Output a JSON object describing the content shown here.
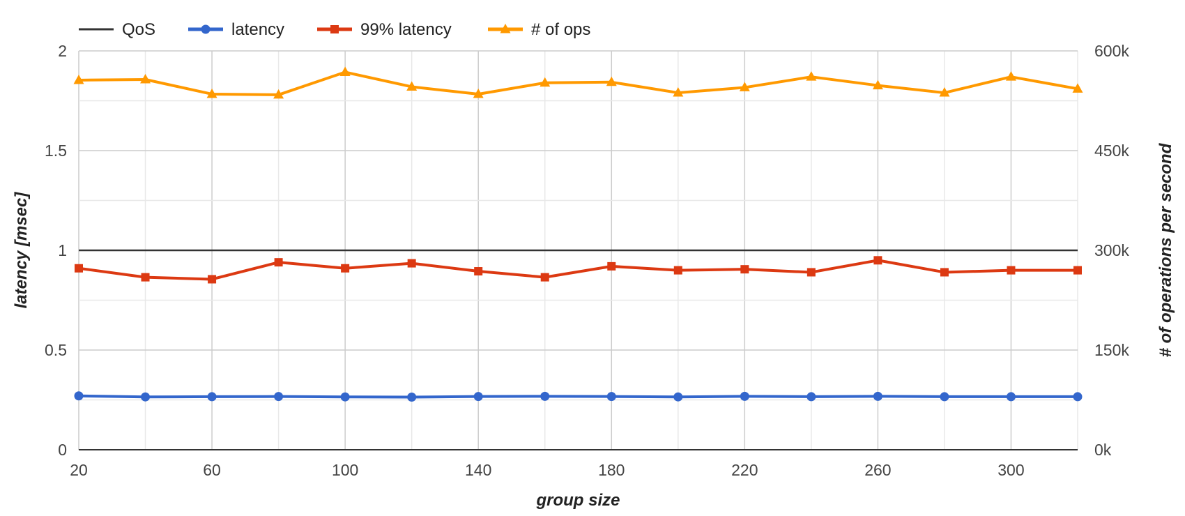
{
  "chart_data": {
    "type": "line",
    "title": "",
    "xlabel": "group size",
    "ylabel": "latency [msec]",
    "y2label": "# of operations per second",
    "x": [
      20,
      40,
      60,
      80,
      100,
      120,
      140,
      160,
      180,
      200,
      220,
      240,
      260,
      280,
      300,
      320
    ],
    "x_ticks": [
      20,
      60,
      100,
      140,
      180,
      220,
      260,
      300
    ],
    "xlim": [
      20,
      320
    ],
    "ylim": [
      0,
      2
    ],
    "y_ticks": [
      "0",
      "0.5",
      "1",
      "1.5",
      "2"
    ],
    "y2lim": [
      0,
      600000
    ],
    "y2_ticks": [
      "0k",
      "150k",
      "300k",
      "450k",
      "600k"
    ],
    "grid": true,
    "legend_position": "top-left",
    "series": [
      {
        "name": "QoS",
        "axis": "left",
        "color": "#333333",
        "marker": "none",
        "values": [
          1,
          1,
          1,
          1,
          1,
          1,
          1,
          1,
          1,
          1,
          1,
          1,
          1,
          1,
          1,
          1
        ]
      },
      {
        "name": "latency",
        "axis": "left",
        "color": "#3366cc",
        "marker": "circle",
        "values": [
          0.27,
          0.265,
          0.266,
          0.267,
          0.265,
          0.264,
          0.267,
          0.268,
          0.267,
          0.265,
          0.268,
          0.266,
          0.268,
          0.266,
          0.266,
          0.266
        ]
      },
      {
        "name": "99% latency",
        "axis": "left",
        "color": "#dc3912",
        "marker": "square",
        "values": [
          0.91,
          0.865,
          0.855,
          0.94,
          0.91,
          0.935,
          0.895,
          0.865,
          0.92,
          0.9,
          0.905,
          0.89,
          0.95,
          0.89,
          0.9,
          0.9
        ]
      },
      {
        "name": "# of ops",
        "axis": "right",
        "color": "#ff9900",
        "marker": "triangle",
        "values": [
          556000,
          557000,
          535000,
          534000,
          568000,
          546000,
          535000,
          552000,
          553000,
          537000,
          545000,
          561000,
          548000,
          537000,
          561000,
          543000
        ]
      }
    ]
  }
}
